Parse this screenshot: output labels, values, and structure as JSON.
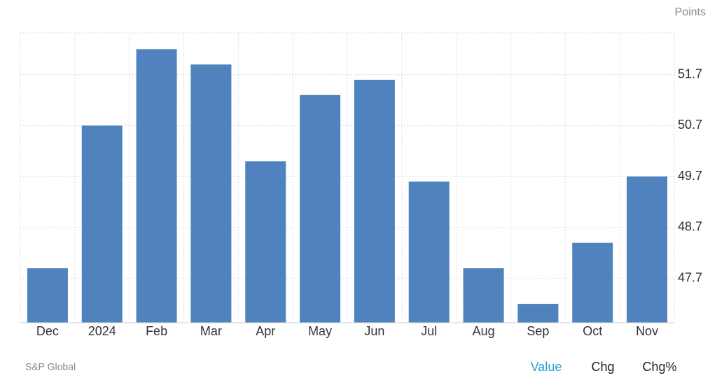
{
  "chart_data": {
    "type": "bar",
    "unit_label": "Points",
    "source": "S&P Global",
    "tabs": [
      "Value",
      "Chg",
      "Chg%"
    ],
    "categories": [
      "Dec",
      "2024",
      "Feb",
      "Mar",
      "Apr",
      "May",
      "Jun",
      "Jul",
      "Aug",
      "Sep",
      "Oct",
      "Nov"
    ],
    "values": [
      47.9,
      50.7,
      52.2,
      51.9,
      50.0,
      51.3,
      51.6,
      49.6,
      47.9,
      47.2,
      48.4,
      49.7
    ],
    "color": "#5082be",
    "ylim": [
      46.83,
      52.52
    ],
    "yticks": [
      47.7,
      48.7,
      49.7,
      50.7,
      51.7
    ],
    "grid": true
  }
}
